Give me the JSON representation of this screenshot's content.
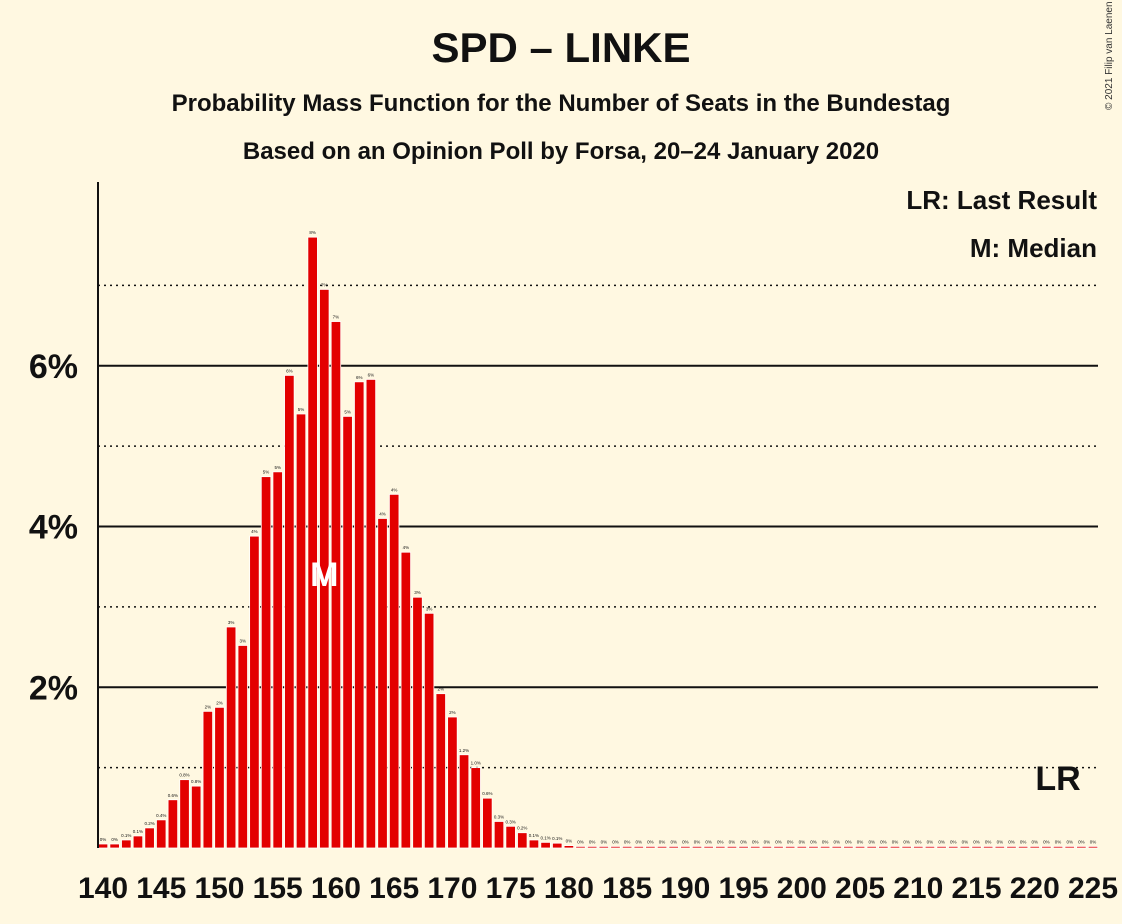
{
  "copyright": "© 2021 Filip van Laenen",
  "chart_data": {
    "type": "bar",
    "title": "SPD – LINKE",
    "subtitle": "Probability Mass Function for the Number of Seats in the Bundestag",
    "subtitle2": "Based on an Opinion Poll by Forsa, 20–24 January 2020",
    "x_start": 140,
    "x_end": 225,
    "xtick_labels": [
      "140",
      "145",
      "150",
      "155",
      "160",
      "165",
      "170",
      "175",
      "180",
      "185",
      "190",
      "195",
      "200",
      "205",
      "210",
      "215",
      "220",
      "225"
    ],
    "ytick_labels": [
      "2%",
      "4%",
      "6%"
    ],
    "ylim": [
      0,
      8
    ],
    "gridlines_solid": [
      2,
      4,
      6
    ],
    "gridlines_dotted": [
      1,
      3,
      5,
      7
    ],
    "bar_color": "#e30000",
    "values": [
      0.05,
      0.05,
      0.1,
      0.15,
      0.25,
      0.35,
      0.6,
      0.85,
      0.77,
      1.7,
      1.75,
      2.75,
      2.52,
      3.88,
      4.62,
      4.68,
      5.88,
      5.4,
      7.6,
      6.95,
      6.55,
      5.37,
      5.8,
      5.83,
      4.1,
      4.4,
      3.68,
      3.12,
      2.92,
      1.92,
      1.63,
      1.16,
      1.0,
      0.62,
      0.33,
      0.27,
      0.19,
      0.1,
      0.07,
      0.06,
      0.03,
      0.02,
      0.02,
      0.02,
      0.02,
      0.02,
      0.02,
      0.02,
      0.02,
      0.02,
      0.02,
      0.02,
      0.02,
      0.02,
      0.02,
      0.02,
      0.02,
      0.02,
      0.02,
      0.02,
      0.02,
      0.02,
      0.02,
      0.02,
      0.02,
      0.02,
      0.02,
      0.02,
      0.02,
      0.02,
      0.02,
      0.02,
      0.02,
      0.02,
      0.02,
      0.02,
      0.02,
      0.02,
      0.02,
      0.02,
      0.02,
      0.02,
      0.02,
      0.02,
      0.02,
      0.02
    ],
    "data_labels": [
      "0%",
      "0%",
      "0.1%",
      "0.1%",
      "0.2%",
      "0.4%",
      "0.6%",
      "0.8%",
      "0.8%",
      "2%",
      "2%",
      "3%",
      "3%",
      "4%",
      "5%",
      "5%",
      "6%",
      "5%",
      "8%",
      "7%",
      "7%",
      "5%",
      "6%",
      "6%",
      "4%",
      "4%",
      "4%",
      "3%",
      "3%",
      "2%",
      "2%",
      "1.2%",
      "1.0%",
      "0.6%",
      "0.3%",
      "0.3%",
      "0.2%",
      "0.1%",
      "0.1%",
      "0.1%",
      "0%",
      "0%",
      "0%",
      "0%",
      "0%",
      "0%",
      "0%",
      "0%",
      "0%",
      "0%",
      "0%",
      "0%",
      "0%",
      "0%",
      "0%",
      "0%",
      "0%",
      "0%",
      "0%",
      "0%",
      "0%",
      "0%",
      "0%",
      "0%",
      "0%",
      "0%",
      "0%",
      "0%",
      "0%",
      "0%",
      "0%",
      "0%",
      "0%",
      "0%",
      "0%",
      "0%",
      "0%",
      "0%",
      "0%",
      "0%",
      "0%",
      "0%",
      "0%",
      "0%",
      "0%",
      "0%"
    ],
    "median_seat": 159,
    "median_marker": "M",
    "last_result_seat": 222,
    "last_result_marker": "LR",
    "legend": {
      "placement": "top-right",
      "last_result": "LR: Last Result",
      "median": "M: Median"
    }
  }
}
